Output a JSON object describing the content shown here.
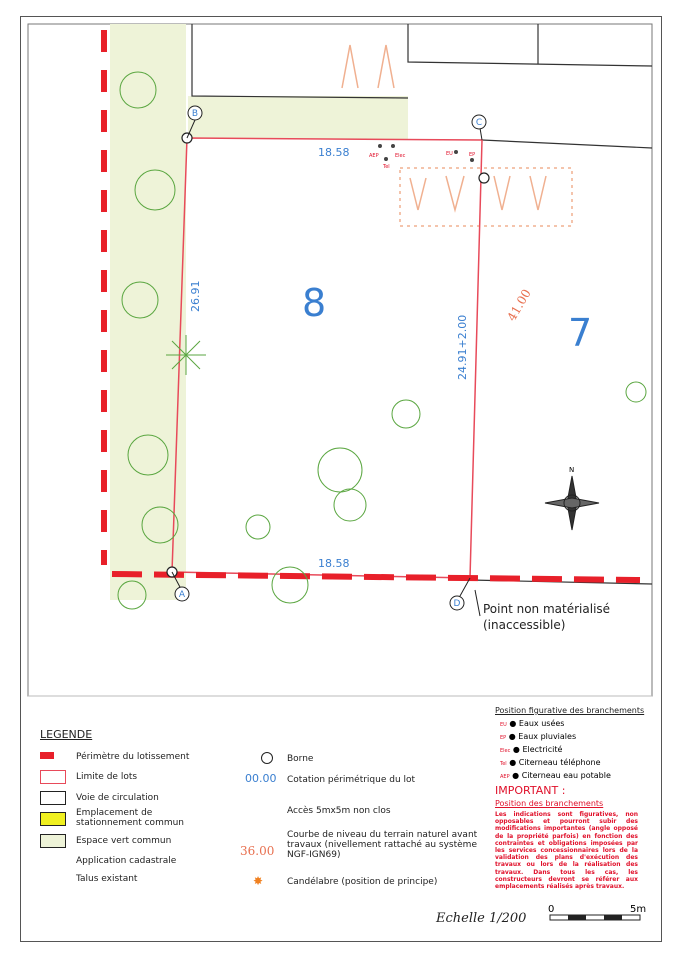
{
  "map": {
    "lot_numbers": [
      "8",
      "7"
    ],
    "corner_labels": [
      "A",
      "B",
      "C",
      "D"
    ],
    "dimensions": {
      "top": "18.58",
      "bottom": "18.58",
      "left": "26.91",
      "right": "24.91+2.00",
      "diagonal": "41.00"
    },
    "network_labels": [
      "AEP",
      "Elec",
      "Tel",
      "EU",
      "EP"
    ],
    "annotation": [
      "Point non matérialisé",
      "(inaccessible)"
    ],
    "north_label": "N"
  },
  "legend": {
    "title": "LEGENDE",
    "left_items": [
      "Périmètre du lotissement",
      "Limite de lots",
      "Voie de circulation",
      "Emplacement de stationnement commun",
      "Espace vert commun",
      "Application cadastrale",
      "Talus existant"
    ],
    "right_items": [
      "Borne",
      "Cotation périmétrique du lot",
      "Accès 5mx5m non clos",
      "Courbe de niveau du terrain naturel avant travaux (nivellement rattaché au système NGF-IGN69)",
      "Candélabre (position de principe)"
    ],
    "cotation_sample": "00.00",
    "contour_sample": "36.00"
  },
  "branchements": {
    "title": "Position figurative des branchements",
    "items": [
      {
        "code": "EU",
        "label": "Eaux usées"
      },
      {
        "code": "EP",
        "label": "Eaux pluviales"
      },
      {
        "code": "Elec",
        "label": "Electricité"
      },
      {
        "code": "Tel",
        "label": "Citerneau téléphone"
      },
      {
        "code": "AEP",
        "label": "Citerneau eau potable"
      }
    ],
    "important_title": "IMPORTANT :",
    "important_subtitle": "Position des branchements",
    "important_text": "Les indications sont figuratives, non opposables et pourront subir des modifications importantes (angle opposé de la propriété parfois) en fonction des contraintes et obligations imposées par les services concessionnaires lors de la validation des plans d'exécution des travaux ou lors de la réalisation des travaux. Dans tous les cas, les constructeurs devront se référer aux emplacements réalisés après travaux."
  },
  "scale": {
    "label": "Echelle 1/200",
    "start": "0",
    "end": "5m"
  },
  "colors": {
    "perimeter": "#e8202a",
    "lot_limit": "#e84a5a",
    "dimension": "#3a7fd0",
    "green": "#eef3d8",
    "tree": "#5aa640"
  }
}
